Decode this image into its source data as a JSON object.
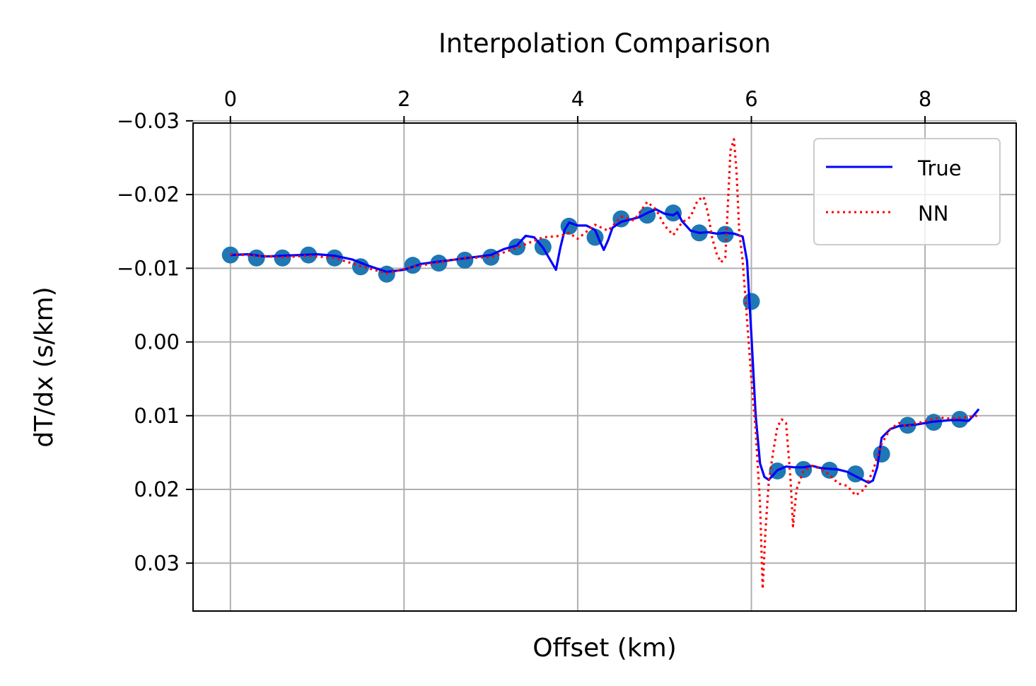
{
  "chart_data": {
    "type": "line",
    "title": "Interpolation Comparison",
    "xlabel": "Offset (km)",
    "ylabel": "dT/dx (s/km)",
    "xlim": [
      -0.43,
      9.05
    ],
    "ylim": [
      -0.0297,
      0.0365
    ],
    "y_inverted": true,
    "x_ticks": [
      0,
      2,
      4,
      6,
      8
    ],
    "x_tick_labels": [
      "0",
      "2",
      "4",
      "6",
      "8"
    ],
    "x_ticks_position": "top",
    "y_ticks": [
      -0.03,
      -0.02,
      -0.01,
      0.0,
      0.01,
      0.02,
      0.03
    ],
    "y_tick_labels": [
      "−0.03",
      "−0.02",
      "−0.01",
      "0.00",
      "0.01",
      "0.02",
      "0.03"
    ],
    "grid": true,
    "legend_position": "top-right",
    "colors": {
      "true": "#0000ff",
      "nn": "#ff0000",
      "samples": "#1f77b4"
    },
    "samples": {
      "x": [
        0.0,
        0.3,
        0.6,
        0.9,
        1.2,
        1.5,
        1.8,
        2.1,
        2.4,
        2.7,
        3.0,
        3.3,
        3.6,
        3.9,
        4.2,
        4.5,
        4.8,
        5.1,
        5.4,
        5.7,
        6.0,
        6.3,
        6.6,
        6.9,
        7.2,
        7.5,
        7.8,
        8.1,
        8.4
      ],
      "y": [
        -0.0118,
        -0.0114,
        -0.0114,
        -0.0118,
        -0.0114,
        -0.0102,
        -0.0092,
        -0.0104,
        -0.0107,
        -0.0111,
        -0.0115,
        -0.0129,
        -0.0129,
        -0.0157,
        -0.0142,
        -0.0167,
        -0.0172,
        -0.0175,
        -0.0148,
        -0.0146,
        -0.0055,
        0.0175,
        0.0173,
        0.0174,
        0.0179,
        0.0152,
        0.0113,
        0.0109,
        0.0105
      ]
    },
    "series": [
      {
        "name": "True",
        "style": "solid",
        "x": [
          0.0,
          0.2,
          0.4,
          0.6,
          0.8,
          1.0,
          1.2,
          1.4,
          1.6,
          1.8,
          2.0,
          2.2,
          2.4,
          2.6,
          2.8,
          3.0,
          3.15,
          3.3,
          3.4,
          3.5,
          3.6,
          3.7,
          3.75,
          3.8,
          3.85,
          3.9,
          4.0,
          4.1,
          4.2,
          4.25,
          4.3,
          4.35,
          4.4,
          4.5,
          4.6,
          4.7,
          4.8,
          4.9,
          5.0,
          5.1,
          5.15,
          5.2,
          5.3,
          5.4,
          5.5,
          5.6,
          5.7,
          5.8,
          5.9,
          5.95,
          6.0,
          6.05,
          6.1,
          6.15,
          6.2,
          6.3,
          6.4,
          6.5,
          6.6,
          6.7,
          6.8,
          6.9,
          7.0,
          7.1,
          7.2,
          7.3,
          7.35,
          7.4,
          7.45,
          7.5,
          7.6,
          7.7,
          7.8,
          7.9,
          8.0,
          8.1,
          8.2,
          8.3,
          8.4,
          8.5,
          8.55,
          8.62
        ],
        "y": [
          -0.0118,
          -0.0119,
          -0.0116,
          -0.0117,
          -0.0118,
          -0.0119,
          -0.0117,
          -0.0112,
          -0.0103,
          -0.0095,
          -0.0098,
          -0.0106,
          -0.0109,
          -0.0112,
          -0.0115,
          -0.0118,
          -0.0126,
          -0.0131,
          -0.0144,
          -0.0142,
          -0.0128,
          -0.0108,
          -0.0098,
          -0.0128,
          -0.0152,
          -0.0162,
          -0.0158,
          -0.0158,
          -0.0152,
          -0.0138,
          -0.0125,
          -0.0138,
          -0.0155,
          -0.0163,
          -0.0166,
          -0.0169,
          -0.0175,
          -0.018,
          -0.0174,
          -0.0172,
          -0.0176,
          -0.0164,
          -0.0151,
          -0.0148,
          -0.0149,
          -0.0147,
          -0.0148,
          -0.0147,
          -0.0143,
          -0.011,
          -0.001,
          0.01,
          0.0165,
          0.0183,
          0.0187,
          0.0174,
          0.0169,
          0.017,
          0.017,
          0.0168,
          0.0171,
          0.0172,
          0.0173,
          0.0176,
          0.0182,
          0.0188,
          0.0191,
          0.0188,
          0.017,
          0.013,
          0.0118,
          0.0114,
          0.0113,
          0.0112,
          0.011,
          0.0108,
          0.0107,
          0.0106,
          0.0106,
          0.0107,
          0.0101,
          0.0091
        ]
      },
      {
        "name": "NN",
        "style": "dotted",
        "x": [
          0.0,
          0.3,
          0.6,
          0.9,
          1.2,
          1.5,
          1.8,
          2.1,
          2.4,
          2.7,
          3.0,
          3.3,
          3.6,
          3.8,
          3.9,
          4.0,
          4.2,
          4.35,
          4.5,
          4.65,
          4.8,
          4.9,
          5.0,
          5.1,
          5.2,
          5.3,
          5.38,
          5.45,
          5.5,
          5.55,
          5.6,
          5.65,
          5.7,
          5.76,
          5.8,
          5.83,
          5.86,
          5.9,
          5.95,
          6.0,
          6.05,
          6.1,
          6.13,
          6.16,
          6.2,
          6.25,
          6.3,
          6.35,
          6.4,
          6.45,
          6.48,
          6.52,
          6.6,
          6.7,
          6.8,
          6.9,
          7.0,
          7.1,
          7.2,
          7.3,
          7.4,
          7.5,
          7.6,
          7.7,
          7.8,
          7.9,
          8.0,
          8.1,
          8.2,
          8.3,
          8.4,
          8.5,
          8.6
        ],
        "y": [
          -0.0119,
          -0.0117,
          -0.0115,
          -0.0117,
          -0.0114,
          -0.0103,
          -0.0093,
          -0.0102,
          -0.0108,
          -0.0114,
          -0.0115,
          -0.0128,
          -0.0142,
          -0.0144,
          -0.0148,
          -0.014,
          -0.0159,
          -0.0151,
          -0.017,
          -0.0165,
          -0.019,
          -0.018,
          -0.0158,
          -0.0145,
          -0.0162,
          -0.017,
          -0.0192,
          -0.0197,
          -0.0175,
          -0.014,
          -0.012,
          -0.0108,
          -0.0115,
          -0.026,
          -0.0275,
          -0.023,
          -0.015,
          -0.011,
          -0.003,
          0.005,
          0.012,
          0.022,
          0.0335,
          0.026,
          0.019,
          0.015,
          0.0115,
          0.0105,
          0.011,
          0.0185,
          0.025,
          0.02,
          0.0175,
          0.0168,
          0.0172,
          0.018,
          0.0192,
          0.0195,
          0.0208,
          0.02,
          0.0175,
          0.0138,
          0.0118,
          0.011,
          0.0115,
          0.011,
          0.0108,
          0.0104,
          0.0103,
          0.0104,
          0.0103,
          0.0102,
          0.01
        ]
      }
    ]
  }
}
